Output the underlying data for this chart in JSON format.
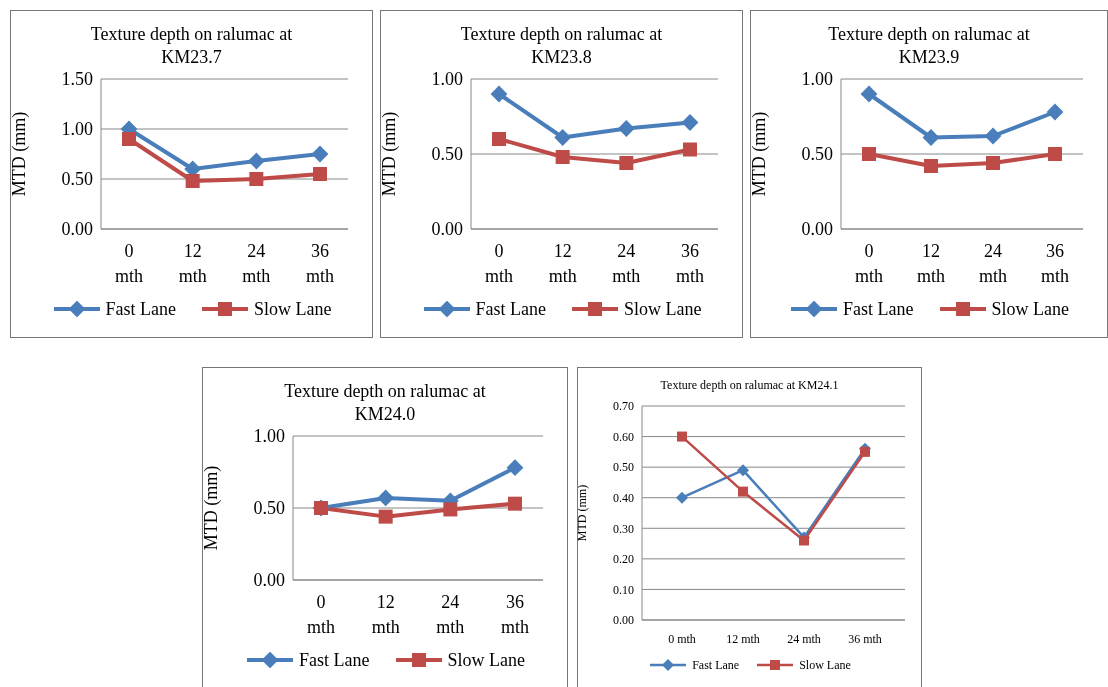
{
  "chart_data": [
    {
      "type": "line",
      "title": "Texture depth on ralumac at KM23.7",
      "ylabel": "MTD (mm)",
      "categories": [
        "0 mth",
        "12 mth",
        "24 mth",
        "36 mth"
      ],
      "ylim": [
        0,
        1.5
      ],
      "yticks": [
        {
          "value": 0,
          "label": "0.00"
        },
        {
          "value": 0.5,
          "label": "0.50"
        },
        {
          "value": 1,
          "label": "1.00"
        },
        {
          "value": 1.5,
          "label": "1.50"
        }
      ],
      "grid": "y",
      "legend": "bottom",
      "series": [
        {
          "name": "Fast Lane",
          "color": "#4a7ebb",
          "marker": "diamond",
          "values": [
            1.0,
            0.6,
            0.68,
            0.75
          ]
        },
        {
          "name": "Slow Lane",
          "color": "#be4b48",
          "marker": "square",
          "values": [
            0.9,
            0.48,
            0.5,
            0.55
          ]
        }
      ]
    },
    {
      "type": "line",
      "title": "Texture depth on ralumac at KM23.8",
      "ylabel": "MTD (mm)",
      "categories": [
        "0 mth",
        "12 mth",
        "24 mth",
        "36 mth"
      ],
      "ylim": [
        0,
        1
      ],
      "yticks": [
        {
          "value": 0,
          "label": "0.00"
        },
        {
          "value": 0.5,
          "label": "0.50"
        },
        {
          "value": 1,
          "label": "1.00"
        }
      ],
      "grid": "y",
      "legend": "bottom",
      "series": [
        {
          "name": "Fast Lane",
          "color": "#4a7ebb",
          "marker": "diamond",
          "values": [
            0.9,
            0.61,
            0.67,
            0.71
          ]
        },
        {
          "name": "Slow Lane",
          "color": "#be4b48",
          "marker": "square",
          "values": [
            0.6,
            0.48,
            0.44,
            0.53
          ]
        }
      ]
    },
    {
      "type": "line",
      "title": "Texture depth on ralumac at KM23.9",
      "ylabel": "MTD (mm)",
      "categories": [
        "0 mth",
        "12 mth",
        "24 mth",
        "36 mth"
      ],
      "ylim": [
        0,
        1
      ],
      "yticks": [
        {
          "value": 0,
          "label": "0.00"
        },
        {
          "value": 0.5,
          "label": "0.50"
        },
        {
          "value": 1,
          "label": "1.00"
        }
      ],
      "grid": "y",
      "legend": "bottom",
      "series": [
        {
          "name": "Fast Lane",
          "color": "#4a7ebb",
          "marker": "diamond",
          "values": [
            0.9,
            0.61,
            0.62,
            0.78
          ]
        },
        {
          "name": "Slow Lane",
          "color": "#be4b48",
          "marker": "square",
          "values": [
            0.5,
            0.42,
            0.44,
            0.5
          ]
        }
      ]
    },
    {
      "type": "line",
      "title": "Texture depth on ralumac at KM24.0",
      "ylabel": "MTD (mm)",
      "categories": [
        "0 mth",
        "12 mth",
        "24 mth",
        "36 mth"
      ],
      "ylim": [
        0,
        1
      ],
      "yticks": [
        {
          "value": 0,
          "label": "0.00"
        },
        {
          "value": 0.5,
          "label": "0.50"
        },
        {
          "value": 1,
          "label": "1.00"
        }
      ],
      "grid": "y",
      "legend": "bottom",
      "series": [
        {
          "name": "Fast Lane",
          "color": "#4a7ebb",
          "marker": "diamond",
          "values": [
            0.5,
            0.57,
            0.55,
            0.78
          ]
        },
        {
          "name": "Slow Lane",
          "color": "#be4b48",
          "marker": "square",
          "values": [
            0.5,
            0.44,
            0.49,
            0.53
          ]
        }
      ]
    },
    {
      "type": "line",
      "title": "Texture depth on ralumac at KM24.1",
      "ylabel": "MTD (mm)",
      "categories": [
        "0 mth",
        "12 mth",
        "24 mth",
        "36 mth"
      ],
      "ylim": [
        0,
        0.7
      ],
      "yticks": [
        {
          "value": 0,
          "label": "0.00"
        },
        {
          "value": 0.1,
          "label": "0.10"
        },
        {
          "value": 0.2,
          "label": "0.20"
        },
        {
          "value": 0.3,
          "label": "0.30"
        },
        {
          "value": 0.4,
          "label": "0.40"
        },
        {
          "value": 0.5,
          "label": "0.50"
        },
        {
          "value": 0.6,
          "label": "0.60"
        },
        {
          "value": 0.7,
          "label": "0.70"
        }
      ],
      "grid": "y",
      "legend": "bottom",
      "series": [
        {
          "name": "Fast Lane",
          "color": "#4a7ebb",
          "marker": "diamond",
          "values": [
            0.4,
            0.49,
            0.27,
            0.56
          ]
        },
        {
          "name": "Slow Lane",
          "color": "#be4b48",
          "marker": "square",
          "values": [
            0.6,
            0.42,
            0.26,
            0.55
          ]
        }
      ]
    }
  ]
}
